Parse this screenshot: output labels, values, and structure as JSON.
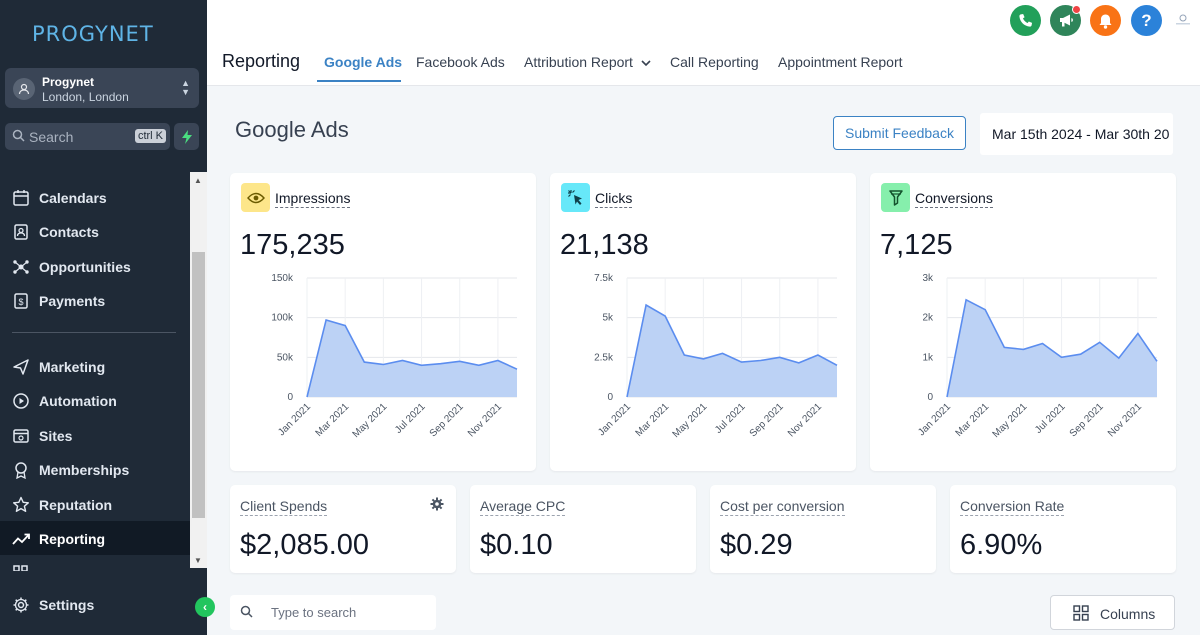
{
  "app": {
    "logo_text": "PROGYNET"
  },
  "location": {
    "name": "Progynet",
    "address": "London, London"
  },
  "sidebar_search": {
    "placeholder": "Search",
    "shortcut": "ctrl K"
  },
  "nav": {
    "calendars": "Calendars",
    "contacts": "Contacts",
    "opportunities": "Opportunities",
    "payments": "Payments",
    "marketing": "Marketing",
    "automation": "Automation",
    "sites": "Sites",
    "memberships": "Memberships",
    "reputation": "Reputation",
    "reporting": "Reporting",
    "settings": "Settings"
  },
  "header": {
    "title": "Reporting",
    "tabs": [
      "Google Ads",
      "Facebook Ads",
      "Attribution Report",
      "Call Reporting",
      "Appointment Report"
    ],
    "active_tab": "Google Ads"
  },
  "top_icons": [
    {
      "name": "phone-icon",
      "color": "#22a05a"
    },
    {
      "name": "megaphone-icon",
      "color": "#2f855a"
    },
    {
      "name": "bell-icon",
      "color": "#f97316"
    },
    {
      "name": "help-icon",
      "color": "#2b82d9"
    }
  ],
  "page": {
    "title": "Google Ads",
    "feedback_label": "Submit Feedback",
    "date_range": "Mar 15th 2024 - Mar 30th 20"
  },
  "metrics": [
    {
      "label": "Impressions",
      "value": "175,235",
      "icon": "eye-icon",
      "icon_bg": "#fde68a"
    },
    {
      "label": "Clicks",
      "value": "21,138",
      "icon": "cursor-click-icon",
      "icon_bg": "#67e8f9"
    },
    {
      "label": "Conversions",
      "value": "7,125",
      "icon": "filter-icon",
      "icon_bg": "#86efac"
    }
  ],
  "chart_data": [
    {
      "type": "area",
      "categories": [
        "Jan 2021",
        "Feb 2021",
        "Mar 2021",
        "Apr 2021",
        "May 2021",
        "Jun 2021",
        "Jul 2021",
        "Aug 2021",
        "Sep 2021",
        "Oct 2021",
        "Nov 2021",
        "Dec 2021"
      ],
      "tick_labels": [
        "Jan 2021",
        "Mar 2021",
        "May 2021",
        "Jul 2021",
        "Sep 2021",
        "Nov 2021"
      ],
      "y_ticks": [
        "0",
        "50k",
        "100k",
        "150k"
      ],
      "ylim": [
        0,
        150000
      ],
      "values": [
        0,
        97000,
        90000,
        44000,
        41000,
        46000,
        40000,
        42000,
        45000,
        40000,
        46000,
        35000
      ]
    },
    {
      "type": "area",
      "categories": [
        "Jan 2021",
        "Feb 2021",
        "Mar 2021",
        "Apr 2021",
        "May 2021",
        "Jun 2021",
        "Jul 2021",
        "Aug 2021",
        "Sep 2021",
        "Oct 2021",
        "Nov 2021",
        "Dec 2021"
      ],
      "tick_labels": [
        "Jan 2021",
        "Mar 2021",
        "May 2021",
        "Jul 2021",
        "Sep 2021",
        "Nov 2021"
      ],
      "y_ticks": [
        "0",
        "2.5k",
        "5k",
        "7.5k"
      ],
      "ylim": [
        0,
        7500
      ],
      "values": [
        0,
        5800,
        5100,
        2650,
        2400,
        2750,
        2200,
        2300,
        2500,
        2150,
        2650,
        2000
      ]
    },
    {
      "type": "area",
      "categories": [
        "Jan 2021",
        "Feb 2021",
        "Mar 2021",
        "Apr 2021",
        "May 2021",
        "Jun 2021",
        "Jul 2021",
        "Aug 2021",
        "Sep 2021",
        "Oct 2021",
        "Nov 2021",
        "Dec 2021"
      ],
      "tick_labels": [
        "Jan 2021",
        "Mar 2021",
        "May 2021",
        "Jul 2021",
        "Sep 2021",
        "Nov 2021"
      ],
      "y_ticks": [
        "0",
        "1k",
        "2k",
        "3k"
      ],
      "ylim": [
        0,
        3000
      ],
      "values": [
        0,
        2450,
        2200,
        1250,
        1200,
        1350,
        1000,
        1080,
        1380,
        980,
        1600,
        900
      ]
    }
  ],
  "kpis": [
    {
      "label": "Client Spends",
      "value": "$2,085.00"
    },
    {
      "label": "Average CPC",
      "value": "$0.10"
    },
    {
      "label": "Cost per conversion",
      "value": "$0.29"
    },
    {
      "label": "Conversion Rate",
      "value": "6.90%"
    }
  ],
  "table_search": {
    "placeholder": "Type to search"
  },
  "columns_label": "Columns",
  "colors": {
    "accent": "#3b82c4",
    "chart_fill": "#bcd2f5",
    "chart_line": "#5b8def",
    "sidebar_bg": "#1f2a37"
  }
}
